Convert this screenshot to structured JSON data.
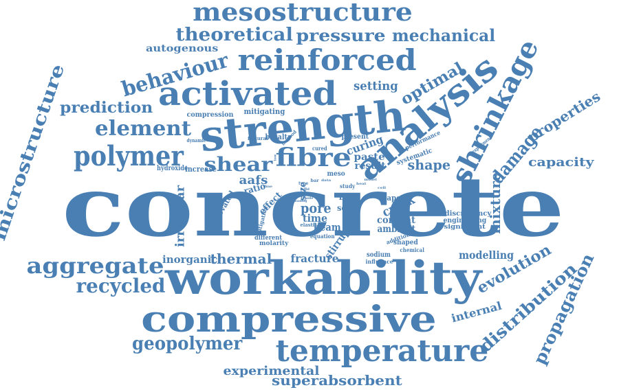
{
  "colors": {
    "word": "#4a7fb3",
    "background": "#ffffff"
  },
  "words": [
    {
      "id": "concrete",
      "text": "concrete"
    },
    {
      "id": "workability",
      "text": "workability"
    },
    {
      "id": "strength",
      "text": "strength"
    },
    {
      "id": "compressive",
      "text": "compressive"
    },
    {
      "id": "activated",
      "text": "activated"
    },
    {
      "id": "analysis",
      "text": "analysis"
    },
    {
      "id": "shrinkage",
      "text": "shrinkage"
    },
    {
      "id": "reinforced",
      "text": "reinforced"
    },
    {
      "id": "mesostructure",
      "text": "mesostructure"
    },
    {
      "id": "temperature",
      "text": "temperature"
    },
    {
      "id": "microstructure",
      "text": "microstructure"
    },
    {
      "id": "polymer",
      "text": "polymer"
    },
    {
      "id": "element",
      "text": "element"
    },
    {
      "id": "aggregate",
      "text": "aggregate"
    },
    {
      "id": "fibre",
      "text": "fibre"
    },
    {
      "id": "shear",
      "text": "shear"
    },
    {
      "id": "behaviour",
      "text": "behaviour"
    },
    {
      "id": "theoretical",
      "text": "theoretical"
    },
    {
      "id": "pressure",
      "text": "pressure"
    },
    {
      "id": "mechanical",
      "text": "mechanical"
    },
    {
      "id": "geopolymer",
      "text": "geopolymer"
    },
    {
      "id": "recycled",
      "text": "recycled"
    },
    {
      "id": "distribution",
      "text": "distribution"
    },
    {
      "id": "propagation",
      "text": "propagation"
    },
    {
      "id": "prediction",
      "text": "prediction"
    },
    {
      "id": "damage",
      "text": "damage"
    },
    {
      "id": "properties",
      "text": "properties"
    },
    {
      "id": "evolution",
      "text": "evolution"
    },
    {
      "id": "capacity",
      "text": "capacity"
    },
    {
      "id": "superabsorbent",
      "text": "superabsorbent"
    },
    {
      "id": "experimental",
      "text": "experimental"
    },
    {
      "id": "optimal",
      "text": "optimal"
    },
    {
      "id": "mixture",
      "text": "mixture"
    },
    {
      "id": "internal",
      "text": "internal"
    },
    {
      "id": "thermal",
      "text": "thermal"
    },
    {
      "id": "irregular",
      "text": "irregular"
    },
    {
      "id": "pore",
      "text": "pore"
    },
    {
      "id": "autogenous",
      "text": "autogenous"
    },
    {
      "id": "setting",
      "text": "setting"
    },
    {
      "id": "modelling",
      "text": "modelling"
    },
    {
      "id": "inorganic",
      "text": "inorganic"
    },
    {
      "id": "fracture",
      "text": "fracture"
    },
    {
      "id": "shape",
      "text": "shape"
    },
    {
      "id": "crack",
      "text": "crack"
    },
    {
      "id": "aafs",
      "text": "aafs"
    },
    {
      "id": "time",
      "text": "time"
    },
    {
      "id": "beam",
      "text": "beam"
    },
    {
      "id": "stirrup",
      "text": "stirrup"
    },
    {
      "id": "content",
      "text": "content"
    },
    {
      "id": "ambient",
      "text": "ambient"
    },
    {
      "id": "curing",
      "text": "curing"
    },
    {
      "id": "paste",
      "text": "paste"
    },
    {
      "id": "result",
      "text": "result"
    },
    {
      "id": "mitigating",
      "text": "mitigating"
    },
    {
      "id": "compression",
      "text": "compression"
    },
    {
      "id": "increase",
      "text": "increase"
    },
    {
      "id": "hydroxide",
      "text": "hydroxide"
    },
    {
      "id": "basalt",
      "text": "basalt"
    },
    {
      "id": "flexural",
      "text": "flexural"
    },
    {
      "id": "dynamic",
      "text": "dynamic"
    },
    {
      "id": "method",
      "text": "method"
    },
    {
      "id": "present",
      "text": "present"
    },
    {
      "id": "cured",
      "text": "cured"
    },
    {
      "id": "systematic",
      "text": "systematic"
    },
    {
      "id": "performance",
      "text": "performance"
    },
    {
      "id": "experiment",
      "text": "experiment"
    },
    {
      "id": "ratio",
      "text": "ratio"
    },
    {
      "id": "effect",
      "text": "effect"
    },
    {
      "id": "size",
      "text": "size"
    },
    {
      "id": "elevated",
      "text": "elevated"
    },
    {
      "id": "mitigation",
      "text": "mitigation"
    },
    {
      "id": "different",
      "text": "different"
    },
    {
      "id": "molarity",
      "text": "molarity"
    },
    {
      "id": "meso",
      "text": "meso"
    },
    {
      "id": "study",
      "text": "study"
    },
    {
      "id": "bfrp",
      "text": "bfrp"
    },
    {
      "id": "scale",
      "text": "scale"
    },
    {
      "id": "paper",
      "text": "paper"
    },
    {
      "id": "elastic",
      "text": "elastic"
    },
    {
      "id": "localisation",
      "text": "localisation"
    },
    {
      "id": "equation",
      "text": "equation"
    },
    {
      "id": "discrepancy",
      "text": "discrepancy"
    },
    {
      "id": "engineering",
      "text": "engineering"
    },
    {
      "id": "significant",
      "text": "significant"
    },
    {
      "id": "addition",
      "text": "addition"
    },
    {
      "id": "shaped",
      "text": "shaped"
    },
    {
      "id": "chemical",
      "text": "chemical"
    },
    {
      "id": "sodium",
      "text": "sodium"
    },
    {
      "id": "influence",
      "text": "influence"
    },
    {
      "id": "bar",
      "text": "bar"
    },
    {
      "id": "type",
      "text": "type"
    },
    {
      "id": "build",
      "text": "build"
    },
    {
      "id": "fly",
      "text": "fly"
    },
    {
      "id": "lab",
      "text": "lab"
    },
    {
      "id": "data",
      "text": "data"
    },
    {
      "id": "tensile",
      "text": "tensile"
    },
    {
      "id": "loading",
      "text": "loading"
    },
    {
      "id": "heat",
      "text": "heat"
    },
    {
      "id": "low",
      "text": "low"
    },
    {
      "id": "model",
      "text": "model"
    },
    {
      "id": "cell",
      "text": "cell"
    },
    {
      "id": "crumb",
      "text": "crumb"
    },
    {
      "id": "effective",
      "text": "effective"
    },
    {
      "id": "damage2",
      "text": "damage"
    },
    {
      "id": "tests",
      "text": "tests"
    },
    {
      "id": "fine",
      "text": "fine"
    },
    {
      "id": "rate",
      "text": "rate"
    }
  ]
}
